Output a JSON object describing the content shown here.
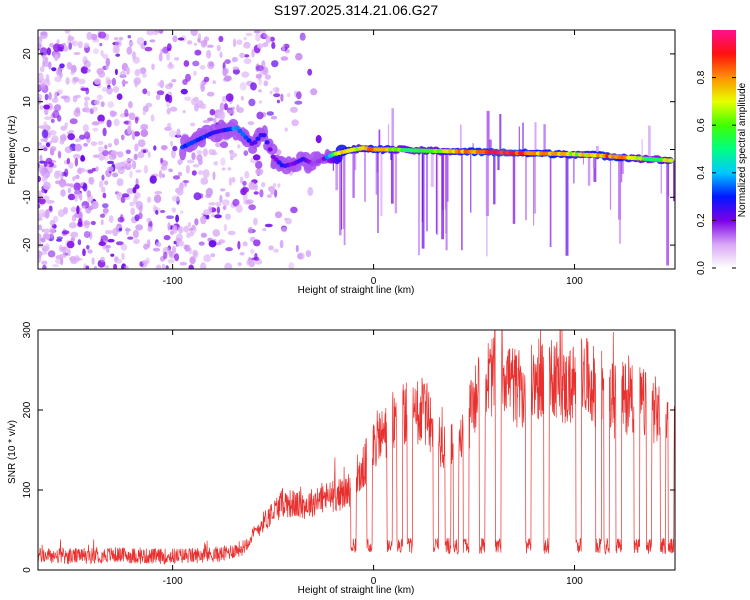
{
  "title": "S197.2025.314.21.06.G27",
  "chart_data": [
    {
      "type": "heatmap",
      "name": "spectrogram",
      "xlabel": "Height of straight line (km)",
      "ylabel": "Frequency (Hz)",
      "xlim": [
        -167,
        150
      ],
      "ylim": [
        -25,
        25
      ],
      "xticks": [
        -100,
        0,
        100
      ],
      "xtick_labels": [
        "-100",
        "0",
        "100"
      ],
      "yticks": [
        -20,
        -10,
        0,
        10,
        20
      ],
      "ytick_labels": [
        "-20",
        "-10",
        "0",
        "10",
        "20"
      ],
      "ridge": {
        "x": [
          -95,
          -85,
          -80,
          -75,
          -68,
          -60,
          -55,
          -50,
          -45,
          -40,
          -35,
          -30,
          -25,
          -20,
          -15,
          -10,
          -5,
          0,
          10,
          20,
          30,
          40,
          50,
          60,
          70,
          80,
          90,
          100,
          110,
          120,
          130,
          140,
          147
        ],
        "freq": [
          0.5,
          2.5,
          3.5,
          4,
          4.5,
          1,
          3.5,
          -1.5,
          -3.5,
          -3,
          -2,
          -3,
          -2,
          -1,
          -0.5,
          0,
          0.3,
          0,
          0,
          -0.2,
          -0.3,
          -0.4,
          -0.5,
          -0.6,
          -0.7,
          -0.8,
          -0.9,
          -1,
          -1.2,
          -1.5,
          -1.8,
          -2.1,
          -2.3
        ],
        "amplitude": [
          0.35,
          0.3,
          0.3,
          0.25,
          0.4,
          0.25,
          0.3,
          0.2,
          0.3,
          0.2,
          0.3,
          0.15,
          0.2,
          0.6,
          0.85,
          0.7,
          0.7,
          0.9,
          0.65,
          0.55,
          0.6,
          0.8,
          0.85,
          0.95,
          0.95,
          0.8,
          0.85,
          0.7,
          0.8,
          0.9,
          0.7,
          0.5,
          0.8
        ]
      },
      "colorbar": {
        "label": "Normalized spectral amplitude",
        "range": [
          0,
          1
        ],
        "ticks": [
          0.0,
          0.2,
          0.4,
          0.6,
          0.8
        ],
        "tick_labels": [
          "0.0",
          "0.2",
          "0.4",
          "0.6",
          "0.8"
        ]
      }
    },
    {
      "type": "line",
      "name": "snr",
      "xlabel": "Height of straight line (km)",
      "ylabel": "SNR (10 * v/v)",
      "xlim": [
        -167,
        150
      ],
      "ylim": [
        0,
        300
      ],
      "xticks": [
        -100,
        0,
        100
      ],
      "xtick_labels": [
        "-100",
        "0",
        "100"
      ],
      "yticks": [
        0,
        100,
        200,
        300
      ],
      "ytick_labels": [
        "0",
        "100",
        "200",
        "300"
      ],
      "color": "#e8312f",
      "x": [
        -167,
        -150,
        -130,
        -110,
        -90,
        -75,
        -65,
        -55,
        -45,
        -35,
        -25,
        -15,
        -8,
        -3,
        0,
        5,
        10,
        15,
        20,
        25,
        30,
        35,
        40,
        45,
        50,
        55,
        60,
        65,
        70,
        75,
        80,
        85,
        90,
        95,
        100,
        105,
        110,
        115,
        120,
        125,
        130,
        135,
        140,
        145,
        150
      ],
      "values": [
        18,
        17,
        19,
        17,
        18,
        20,
        28,
        60,
        85,
        80,
        90,
        95,
        110,
        140,
        160,
        170,
        185,
        195,
        190,
        200,
        175,
        160,
        150,
        165,
        215,
        235,
        245,
        250,
        230,
        220,
        235,
        240,
        245,
        225,
        235,
        240,
        230,
        225,
        210,
        215,
        220,
        205,
        200,
        185,
        170
      ],
      "dropouts": [
        -10,
        -2,
        8,
        13,
        18,
        31,
        37,
        41,
        46,
        54,
        62,
        77,
        86,
        102,
        112,
        116,
        122,
        131,
        137,
        144,
        148
      ]
    }
  ]
}
